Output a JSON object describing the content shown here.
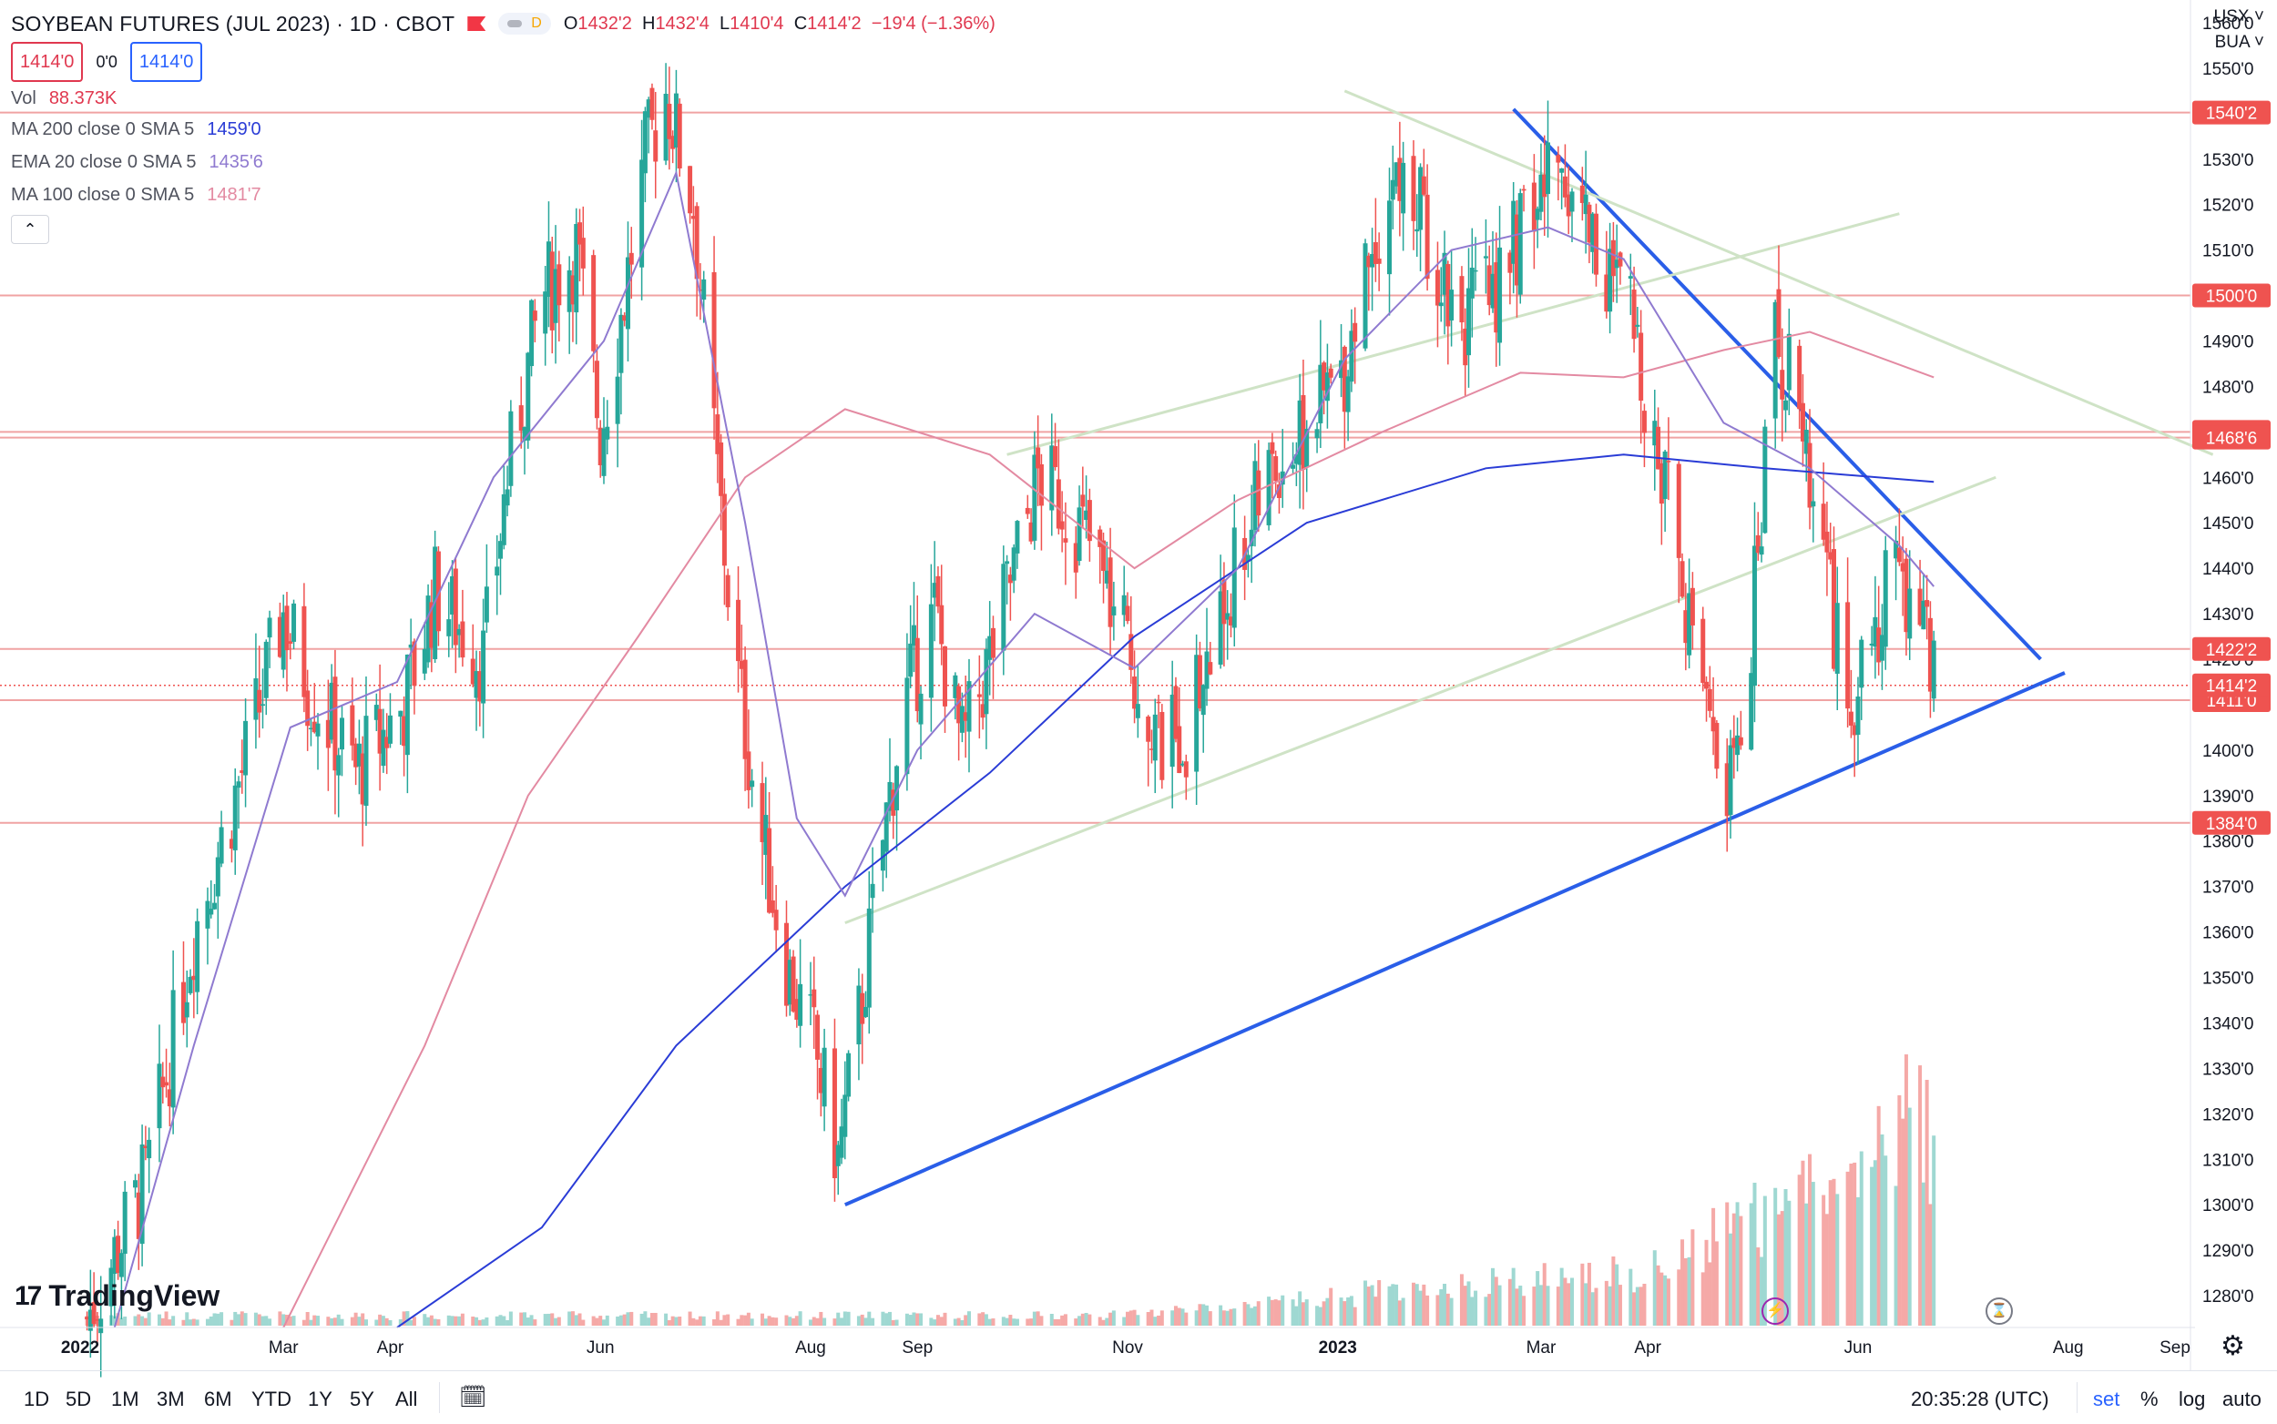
{
  "header": {
    "title": "SOYBEAN FUTURES (JUL 2023) · 1D · CBOT",
    "interval_badge": "D",
    "ohlc": {
      "o_label": "O",
      "o": "1432'2",
      "h_label": "H",
      "h": "1432'4",
      "l_label": "L",
      "l": "1410'4",
      "c_label": "C",
      "c": "1414'2",
      "change": "−19'4 (−1.36%)"
    },
    "bid": "1414'0",
    "spread": "0'0",
    "ask": "1414'0",
    "currency": "USX",
    "unit": "BUA"
  },
  "indicators": [
    {
      "name": "Vol",
      "params": "",
      "value": "88.373K",
      "color": "#e0384f"
    },
    {
      "name": "MA",
      "params": "200 close 0 SMA 5",
      "value": "1459'0",
      "color": "#2a3cd6"
    },
    {
      "name": "EMA",
      "params": "20 close 0 SMA 5",
      "value": "1435'6",
      "color": "#8f7ad0"
    },
    {
      "name": "MA",
      "params": "100 close 0 SMA 5",
      "value": "1481'7",
      "color": "#e38aa2"
    }
  ],
  "collapse_icon": "chevron-up-icon",
  "branding": "TradingView",
  "timeframes": [
    "1D",
    "5D",
    "1M",
    "3M",
    "6M",
    "YTD",
    "1Y",
    "5Y",
    "All"
  ],
  "status": {
    "clock": "20:35:28 (UTC)",
    "set": "set",
    "percent": "%",
    "log": "log",
    "auto": "auto"
  },
  "colors": {
    "up": "#26a69a",
    "down": "#ef5350",
    "trendline": "#2a5ee8",
    "level": "#f0a3a3",
    "channel": "#cfe3c6"
  },
  "chart_data": {
    "type": "candlestick",
    "title": "SOYBEAN FUTURES (JUL 2023) · 1D · CBOT",
    "ylim": [
      1273,
      1565
    ],
    "y_ticks": [
      1280,
      1290,
      1300,
      1310,
      1320,
      1330,
      1340,
      1350,
      1360,
      1370,
      1380,
      1390,
      1400,
      1410,
      1420,
      1430,
      1440,
      1450,
      1460,
      1470,
      1480,
      1490,
      1500,
      1510,
      1520,
      1530,
      1540,
      1550,
      1560
    ],
    "y_tick_format": "'0",
    "x_tick_labels": [
      {
        "label": "2022",
        "date": "2022-01-01",
        "bold": true
      },
      {
        "label": "Mar",
        "date": "2022-03-01"
      },
      {
        "label": "Apr",
        "date": "2022-04-01"
      },
      {
        "label": "Jun",
        "date": "2022-06-01"
      },
      {
        "label": "Aug",
        "date": "2022-08-01"
      },
      {
        "label": "Sep",
        "date": "2022-09-01"
      },
      {
        "label": "Nov",
        "date": "2022-11-01"
      },
      {
        "label": "2023",
        "date": "2023-01-01",
        "bold": true
      },
      {
        "label": "Mar",
        "date": "2023-03-01"
      },
      {
        "label": "Apr",
        "date": "2023-04-01"
      },
      {
        "label": "Jun",
        "date": "2023-06-01"
      },
      {
        "label": "Aug",
        "date": "2023-08-01"
      },
      {
        "label": "Sep",
        "date": "2023-09-01"
      }
    ],
    "price_lines": [
      {
        "price": 1540.25,
        "label": "1540'2"
      },
      {
        "price": 1500,
        "label": "1500'0"
      },
      {
        "price": 1470,
        "label": "1470'0"
      },
      {
        "price": 1468.75,
        "label": "1468'6"
      },
      {
        "price": 1422.25,
        "label": "1422'2"
      },
      {
        "price": 1411,
        "label": "1411'0"
      },
      {
        "price": 1384,
        "label": "1384'0"
      }
    ],
    "last_price": {
      "price": 1414.25,
      "label": "1414'2"
    },
    "close_path": [
      [
        "2022-01-03",
        1275
      ],
      [
        "2022-01-20",
        1305
      ],
      [
        "2022-02-03",
        1360
      ],
      [
        "2022-02-17",
        1395
      ],
      [
        "2022-03-01",
        1430
      ],
      [
        "2022-03-08",
        1415
      ],
      [
        "2022-03-22",
        1395
      ],
      [
        "2022-04-05",
        1410
      ],
      [
        "2022-04-14",
        1435
      ],
      [
        "2022-04-28",
        1420
      ],
      [
        "2022-05-05",
        1460
      ],
      [
        "2022-05-15",
        1500
      ],
      [
        "2022-05-25",
        1510
      ],
      [
        "2022-06-01",
        1470
      ],
      [
        "2022-06-08",
        1500
      ],
      [
        "2022-06-14",
        1530
      ],
      [
        "2022-06-20",
        1545
      ],
      [
        "2022-06-28",
        1520
      ],
      [
        "2022-07-05",
        1460
      ],
      [
        "2022-07-10",
        1420
      ],
      [
        "2022-07-18",
        1380
      ],
      [
        "2022-07-26",
        1350
      ],
      [
        "2022-08-02",
        1335
      ],
      [
        "2022-08-09",
        1310
      ],
      [
        "2022-08-15",
        1340
      ],
      [
        "2022-08-22",
        1380
      ],
      [
        "2022-08-28",
        1410
      ],
      [
        "2022-09-06",
        1430
      ],
      [
        "2022-09-14",
        1400
      ],
      [
        "2022-09-22",
        1420
      ],
      [
        "2022-09-29",
        1440
      ],
      [
        "2022-10-06",
        1460
      ],
      [
        "2022-10-13",
        1455
      ],
      [
        "2022-10-21",
        1445
      ],
      [
        "2022-10-28",
        1430
      ],
      [
        "2022-11-04",
        1415
      ],
      [
        "2022-11-11",
        1400
      ],
      [
        "2022-11-18",
        1405
      ],
      [
        "2022-11-25",
        1420
      ],
      [
        "2022-12-02",
        1440
      ],
      [
        "2022-12-09",
        1455
      ],
      [
        "2022-12-16",
        1465
      ],
      [
        "2022-12-23",
        1470
      ],
      [
        "2023-01-03",
        1485
      ],
      [
        "2023-01-10",
        1510
      ],
      [
        "2023-01-17",
        1525
      ],
      [
        "2023-01-24",
        1520
      ],
      [
        "2023-01-31",
        1505
      ],
      [
        "2023-02-07",
        1495
      ],
      [
        "2023-02-14",
        1500
      ],
      [
        "2023-02-21",
        1510
      ],
      [
        "2023-02-28",
        1520
      ],
      [
        "2023-03-06",
        1530
      ],
      [
        "2023-03-13",
        1520
      ],
      [
        "2023-03-20",
        1505
      ],
      [
        "2023-03-27",
        1495
      ],
      [
        "2023-04-03",
        1470
      ],
      [
        "2023-04-10",
        1440
      ],
      [
        "2023-04-17",
        1410
      ],
      [
        "2023-04-24",
        1390
      ],
      [
        "2023-05-01",
        1425
      ],
      [
        "2023-05-08",
        1490
      ],
      [
        "2023-05-15",
        1475
      ],
      [
        "2023-05-22",
        1450
      ],
      [
        "2023-05-29",
        1400
      ],
      [
        "2023-06-05",
        1425
      ],
      [
        "2023-06-12",
        1440
      ],
      [
        "2023-06-19",
        1430
      ],
      [
        "2023-06-23",
        1414.25
      ]
    ],
    "ma200_path": [
      [
        "2022-04-03",
        1273
      ],
      [
        "2022-05-15",
        1295
      ],
      [
        "2022-06-23",
        1335
      ],
      [
        "2022-08-11",
        1370
      ],
      [
        "2022-09-22",
        1395
      ],
      [
        "2022-11-03",
        1425
      ],
      [
        "2022-12-23",
        1450
      ],
      [
        "2023-02-13",
        1462
      ],
      [
        "2023-03-25",
        1465
      ],
      [
        "2023-05-05",
        1462
      ],
      [
        "2023-06-23",
        1459
      ]
    ],
    "ema20_path": [
      [
        "2022-01-11",
        1273
      ],
      [
        "2022-02-03",
        1335
      ],
      [
        "2022-03-03",
        1405
      ],
      [
        "2022-04-03",
        1415
      ],
      [
        "2022-05-01",
        1460
      ],
      [
        "2022-06-02",
        1490
      ],
      [
        "2022-06-23",
        1527
      ],
      [
        "2022-07-13",
        1450
      ],
      [
        "2022-07-28",
        1385
      ],
      [
        "2022-08-11",
        1368
      ],
      [
        "2022-09-01",
        1400
      ],
      [
        "2022-10-05",
        1430
      ],
      [
        "2022-11-03",
        1418
      ],
      [
        "2022-12-03",
        1440
      ],
      [
        "2023-01-03",
        1486
      ],
      [
        "2023-02-03",
        1510
      ],
      [
        "2023-03-03",
        1515
      ],
      [
        "2023-03-25",
        1508
      ],
      [
        "2023-04-23",
        1472
      ],
      [
        "2023-05-18",
        1462
      ],
      [
        "2023-06-13",
        1445
      ],
      [
        "2023-06-23",
        1436
      ]
    ],
    "ma100_path": [
      [
        "2022-03-01",
        1273
      ],
      [
        "2022-04-11",
        1335
      ],
      [
        "2022-05-11",
        1390
      ],
      [
        "2022-06-12",
        1425
      ],
      [
        "2022-07-13",
        1460
      ],
      [
        "2022-08-11",
        1475
      ],
      [
        "2022-09-22",
        1465
      ],
      [
        "2022-11-03",
        1440
      ],
      [
        "2022-12-03",
        1455
      ],
      [
        "2023-01-14",
        1470
      ],
      [
        "2023-02-23",
        1483
      ],
      [
        "2023-03-25",
        1482
      ],
      [
        "2023-04-23",
        1488
      ],
      [
        "2023-05-18",
        1492
      ],
      [
        "2023-06-23",
        1482
      ]
    ],
    "trendlines": [
      {
        "name": "upper-blue",
        "start": [
          "2023-02-21",
          1541
        ],
        "end": [
          "2023-07-24",
          1420
        ]
      },
      {
        "name": "lower-blue",
        "start": [
          "2022-08-11",
          1300
        ],
        "end": [
          "2023-07-31",
          1417
        ]
      },
      {
        "name": "green-upper",
        "start": [
          "2023-01-03",
          1545
        ],
        "end": [
          "2023-09-12",
          1465
        ]
      },
      {
        "name": "green-channel-1",
        "start": [
          "2022-08-11",
          1362
        ],
        "end": [
          "2023-07-11",
          1460
        ]
      },
      {
        "name": "green-channel-2",
        "start": [
          "2022-09-27",
          1465
        ],
        "end": [
          "2023-06-13",
          1518
        ]
      }
    ]
  }
}
